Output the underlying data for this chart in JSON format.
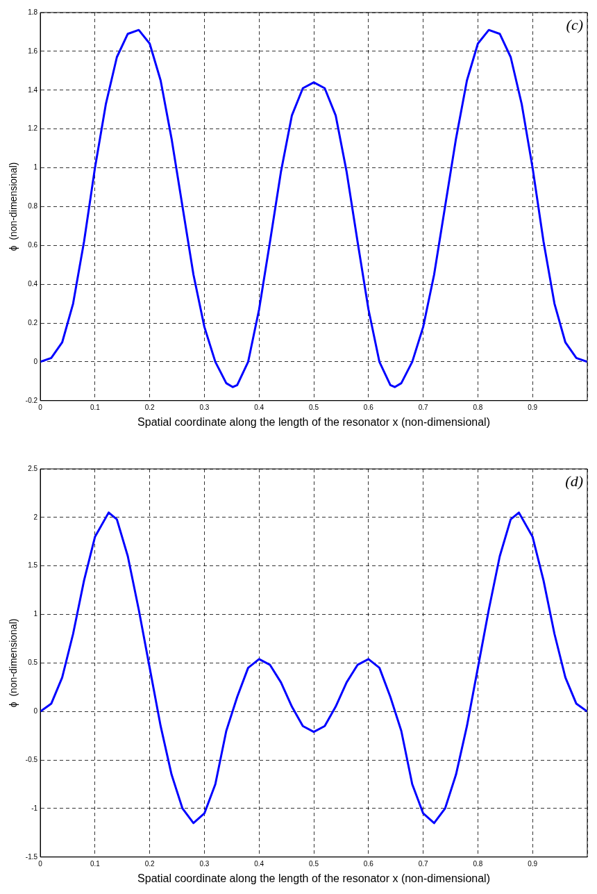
{
  "chart_data": [
    {
      "type": "line",
      "xlabel": "Spatial coordinate along the length of the resonator x (non-dimensional)",
      "ylabel": "ϕ  (non-dimensional)",
      "annotations": [
        "(c)"
      ],
      "xlim": [
        0,
        1
      ],
      "xticks": [
        0,
        0.1,
        0.2,
        0.3,
        0.4,
        0.5,
        0.6,
        0.7,
        0.8,
        0.9,
        {
          "value": 1,
          "label": null
        }
      ],
      "ylim": [
        -0.2,
        1.8
      ],
      "yticks": [
        -0.2,
        0,
        0.2,
        0.4,
        0.6,
        0.8,
        1,
        1.2,
        1.4,
        1.6,
        1.8
      ],
      "grid": true,
      "line_style": "solid",
      "series": [
        {
          "color": "#0000ff",
          "x": [
            0,
            0.02,
            0.04,
            0.06,
            0.08,
            0.1,
            0.12,
            0.14,
            0.16,
            0.18,
            0.2,
            0.22,
            0.24,
            0.26,
            0.28,
            0.3,
            0.32,
            0.34,
            0.352,
            0.36,
            0.38,
            0.4,
            0.42,
            0.44,
            0.46,
            0.48,
            0.5,
            0.52,
            0.54,
            0.56,
            0.58,
            0.6,
            0.62,
            0.64,
            0.648,
            0.66,
            0.68,
            0.7,
            0.72,
            0.74,
            0.76,
            0.78,
            0.8,
            0.82,
            0.84,
            0.86,
            0.88,
            0.9,
            0.92,
            0.94,
            0.96,
            0.98,
            1
          ],
          "values": [
            0,
            0.02,
            0.1,
            0.3,
            0.62,
            1.0,
            1.33,
            1.57,
            1.69,
            1.71,
            1.64,
            1.45,
            1.15,
            0.8,
            0.45,
            0.18,
            0.0,
            -0.11,
            -0.13,
            -0.12,
            0.0,
            0.27,
            0.62,
            0.98,
            1.27,
            1.41,
            1.44,
            1.41,
            1.27,
            0.98,
            0.62,
            0.27,
            0.0,
            -0.12,
            -0.13,
            -0.11,
            0.0,
            0.18,
            0.45,
            0.8,
            1.15,
            1.45,
            1.64,
            1.71,
            1.69,
            1.57,
            1.33,
            1.0,
            0.62,
            0.3,
            0.1,
            0.02,
            0
          ]
        }
      ]
    },
    {
      "type": "line",
      "xlabel": "Spatial coordinate along the length of the resonator x (non-dimensional)",
      "ylabel": "ϕ  (non-dimensional)",
      "annotations": [
        "(d)"
      ],
      "xlim": [
        0,
        1
      ],
      "xticks": [
        0,
        0.1,
        0.2,
        0.3,
        0.4,
        0.5,
        0.6,
        0.7,
        0.8,
        0.9,
        {
          "value": 1,
          "label": null
        }
      ],
      "ylim": [
        -1.5,
        2.5
      ],
      "yticks": [
        -1.5,
        -1,
        -0.5,
        0,
        0.5,
        1,
        1.5,
        2,
        2.5
      ],
      "grid": true,
      "line_style": "solid",
      "series": [
        {
          "color": "#0000ff",
          "x": [
            0,
            0.02,
            0.04,
            0.06,
            0.08,
            0.1,
            0.125,
            0.14,
            0.16,
            0.18,
            0.2,
            0.22,
            0.24,
            0.26,
            0.28,
            0.3,
            0.32,
            0.34,
            0.36,
            0.38,
            0.4,
            0.42,
            0.44,
            0.46,
            0.48,
            0.5,
            0.52,
            0.54,
            0.56,
            0.58,
            0.6,
            0.62,
            0.64,
            0.66,
            0.68,
            0.7,
            0.72,
            0.74,
            0.76,
            0.78,
            0.8,
            0.82,
            0.84,
            0.86,
            0.875,
            0.9,
            0.92,
            0.94,
            0.96,
            0.98,
            1
          ],
          "values": [
            0,
            0.08,
            0.35,
            0.8,
            1.35,
            1.8,
            2.05,
            1.98,
            1.6,
            1.05,
            0.45,
            -0.15,
            -0.65,
            -1.0,
            -1.15,
            -1.05,
            -0.75,
            -0.2,
            0.15,
            0.45,
            0.54,
            0.48,
            0.3,
            0.05,
            -0.15,
            -0.21,
            -0.15,
            0.05,
            0.3,
            0.48,
            0.54,
            0.45,
            0.15,
            -0.2,
            -0.75,
            -1.05,
            -1.15,
            -1.0,
            -0.65,
            -0.15,
            0.45,
            1.05,
            1.6,
            1.98,
            2.05,
            1.8,
            1.35,
            0.8,
            0.35,
            0.08,
            0
          ]
        }
      ]
    }
  ]
}
